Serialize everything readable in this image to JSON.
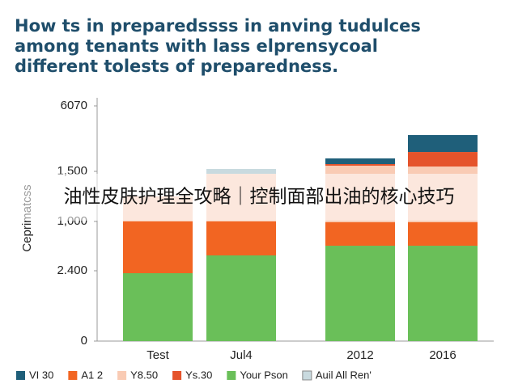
{
  "chart_data": {
    "type": "bar",
    "stacked": true,
    "title": [
      "How ts in preparedssss in anving tudulces",
      "among tenants with lass elprensycoal",
      "different tolests of preparedness."
    ],
    "y_label": "Ceprimatcss",
    "annotation": "油性皮肤护理全攻略｜控制面部出油的核心技巧",
    "categories": [
      "Test",
      "Jul4",
      "2012",
      "2016"
    ],
    "series": [
      {
        "name": "Your Pson",
        "color": "#6abf59",
        "values": [
          1752,
          2211,
          2461,
          2461
        ]
      },
      {
        "name": "A1 2",
        "color": "#f26522",
        "values": [
          1335,
          876,
          605,
          605
        ]
      },
      {
        "name": "Y8.50",
        "color": "#f9cbb4",
        "values": [
          647,
          1231,
          1460,
          1439
        ]
      },
      {
        "name": "Auil All Ren'",
        "color": "#c9dadf",
        "values": [
          0,
          125,
          0,
          0
        ]
      },
      {
        "name": "Ys.30",
        "color": "#e5532b",
        "values": [
          0,
          0,
          42,
          375
        ]
      },
      {
        "name": "VI 30",
        "color": "#1f5f7a",
        "values": [
          0,
          0,
          146,
          438
        ]
      }
    ],
    "ylim": [
      0,
      6070
    ],
    "yticks": [
      0,
      {
        "value": 1815,
        "label": "2.400"
      },
      {
        "value": 3087,
        "label": "1,000"
      },
      {
        "value": 4380,
        "label": "1,500"
      },
      6070
    ]
  }
}
